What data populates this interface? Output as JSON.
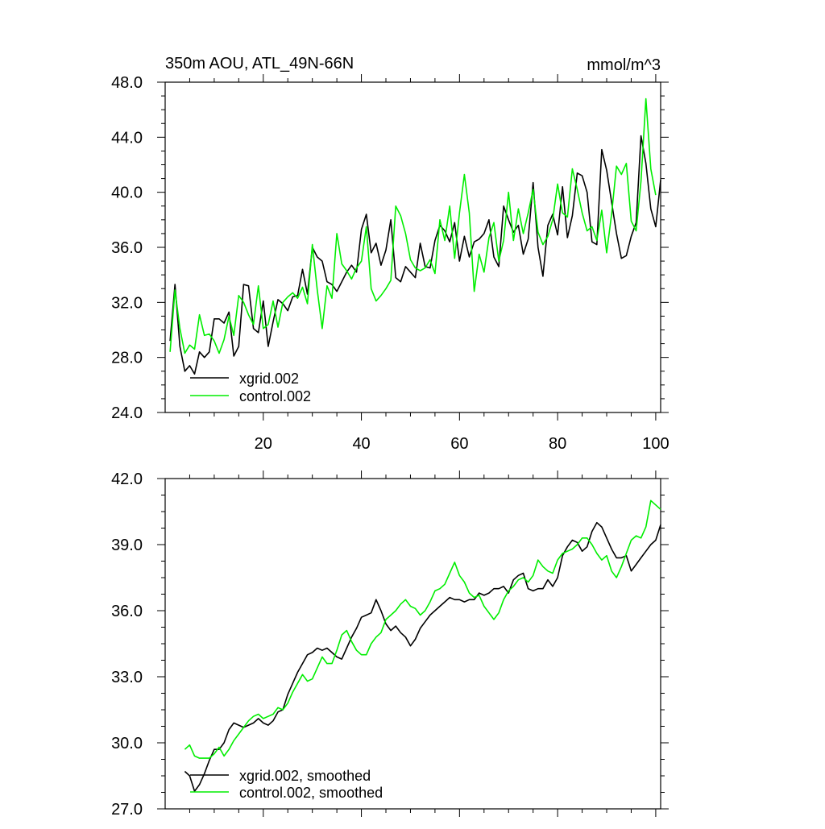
{
  "chart_data": [
    {
      "type": "line",
      "title": "350m AOU, ATL_49N-66N",
      "units": "mmol/m^3",
      "xlabel": "",
      "ylabel": "",
      "xlim": [
        0,
        101
      ],
      "ylim": [
        24.0,
        48.0
      ],
      "x_ticks": [
        20,
        40,
        60,
        80,
        100
      ],
      "x_tick_labels": [
        "20",
        "40",
        "60",
        "80",
        "100"
      ],
      "y_ticks": [
        24.0,
        28.0,
        32.0,
        36.0,
        40.0,
        44.0,
        48.0
      ],
      "y_tick_labels": [
        "24.0",
        "28.0",
        "32.0",
        "36.0",
        "40.0",
        "44.0",
        "48.0"
      ],
      "legend_position": "bottom-left",
      "series": [
        {
          "name": "xgrid.002",
          "color": "#000000",
          "x_start": 1,
          "values": [
            29.2,
            33.3,
            28.8,
            27.0,
            27.4,
            26.8,
            28.4,
            28.0,
            28.4,
            30.8,
            30.8,
            30.5,
            31.3,
            28.1,
            28.8,
            33.3,
            33.2,
            30.1,
            29.8,
            32.1,
            28.8,
            30.6,
            32.2,
            31.9,
            31.4,
            32.4,
            32.5,
            34.4,
            32.6,
            36.0,
            35.3,
            35.0,
            33.5,
            33.3,
            32.8,
            33.5,
            34.2,
            34.7,
            34.2,
            37.3,
            38.4,
            35.6,
            36.3,
            34.7,
            35.8,
            38.0,
            33.8,
            33.5,
            34.6,
            34.2,
            33.8,
            36.3,
            34.6,
            34.5,
            36.5,
            37.6,
            37.2,
            36.4,
            37.8,
            35.0,
            36.8,
            35.3,
            36.4,
            36.6,
            37.0,
            38.0,
            35.3,
            34.6,
            39.0,
            38.0,
            37.1,
            37.6,
            35.5,
            36.6,
            40.7,
            36.0,
            33.9,
            37.6,
            38.4,
            36.9,
            40.4,
            36.7,
            38.3,
            41.4,
            41.2,
            40.0,
            36.4,
            36.2,
            43.1,
            41.6,
            39.3,
            37.0,
            35.2,
            35.4,
            36.8,
            37.8,
            44.1,
            42.1,
            38.8,
            37.5,
            40.9
          ]
        },
        {
          "name": "control.002",
          "color": "#00ee00",
          "x_start": 1,
          "values": [
            28.4,
            32.9,
            30.1,
            28.3,
            28.9,
            28.6,
            31.1,
            29.6,
            29.7,
            29.2,
            28.3,
            29.3,
            31.0,
            29.6,
            32.5,
            32.0,
            31.1,
            30.4,
            33.2,
            30.1,
            30.4,
            32.1,
            30.2,
            32.0,
            32.4,
            32.7,
            32.3,
            33.1,
            31.9,
            36.2,
            32.9,
            30.1,
            33.2,
            32.3,
            37.0,
            34.8,
            34.3,
            33.7,
            34.5,
            35.0,
            37.5,
            33.0,
            32.1,
            32.5,
            33.0,
            33.6,
            39.0,
            38.3,
            37.0,
            35.1,
            34.5,
            34.3,
            34.5,
            35.1,
            34.1,
            38.0,
            36.5,
            39.0,
            35.2,
            38.5,
            41.3,
            38.5,
            32.8,
            35.5,
            34.2,
            36.7,
            37.8,
            35.0,
            36.5,
            40.0,
            36.5,
            38.8,
            37.0,
            38.5,
            40.2,
            37.1,
            36.2,
            36.8,
            38.0,
            40.6,
            38.5,
            38.2,
            41.7,
            40.2,
            38.5,
            37.2,
            37.5,
            36.5,
            38.7,
            35.6,
            38.4,
            41.9,
            41.3,
            42.1,
            37.9,
            37.2,
            40.8,
            46.8,
            41.7,
            39.8,
            null
          ]
        }
      ],
      "legend": [
        "xgrid.002",
        "control.002"
      ]
    },
    {
      "type": "line",
      "title": "",
      "xlabel": "",
      "ylabel": "",
      "xlim": [
        0,
        101
      ],
      "ylim": [
        27.0,
        42.0
      ],
      "x_ticks": [
        20,
        40,
        60,
        80,
        100
      ],
      "x_tick_labels": [],
      "y_ticks": [
        27.0,
        30.0,
        33.0,
        36.0,
        39.0,
        42.0
      ],
      "y_tick_labels": [
        "27.0",
        "30.0",
        "33.0",
        "36.0",
        "39.0",
        "42.0"
      ],
      "legend_position": "bottom-left",
      "series": [
        {
          "name": "xgrid.002, smoothed",
          "color": "#000000",
          "x_start": 4,
          "values": [
            28.7,
            28.5,
            27.8,
            28.1,
            28.6,
            29.2,
            29.7,
            29.7,
            30.0,
            30.6,
            30.9,
            30.8,
            30.7,
            30.8,
            30.9,
            31.1,
            30.9,
            30.8,
            31.0,
            31.4,
            31.5,
            32.2,
            32.7,
            33.2,
            33.6,
            34.0,
            34.1,
            34.3,
            34.2,
            34.3,
            34.1,
            33.9,
            33.8,
            34.3,
            34.8,
            35.2,
            35.7,
            35.8,
            35.9,
            36.5,
            36.0,
            35.4,
            35.1,
            35.3,
            35.0,
            34.8,
            34.4,
            34.7,
            35.2,
            35.5,
            35.8,
            36.0,
            36.2,
            36.4,
            36.6,
            36.5,
            36.5,
            36.4,
            36.5,
            36.5,
            36.8,
            36.7,
            36.8,
            37.0,
            37.0,
            37.1,
            36.8,
            37.4,
            37.6,
            37.7,
            37.0,
            36.9,
            37.0,
            37.0,
            37.4,
            37.1,
            37.5,
            38.5,
            38.9,
            39.2,
            39.1,
            38.7,
            38.9,
            39.6,
            40.0,
            39.8,
            39.3,
            38.8,
            38.4,
            38.4,
            38.5,
            37.8,
            38.1,
            38.4,
            38.7,
            39.0,
            39.2,
            39.9
          ]
        },
        {
          "name": "control.002, smoothed",
          "color": "#00ee00",
          "x_start": 4,
          "values": [
            29.7,
            29.9,
            29.4,
            29.3,
            29.3,
            29.3,
            29.5,
            29.8,
            29.4,
            29.7,
            30.1,
            30.4,
            30.7,
            31.0,
            31.2,
            31.3,
            31.1,
            31.2,
            31.3,
            31.6,
            31.5,
            31.8,
            32.3,
            32.7,
            33.1,
            32.8,
            32.9,
            33.4,
            33.9,
            33.6,
            33.6,
            34.2,
            34.9,
            35.1,
            34.6,
            34.2,
            34.0,
            34.0,
            34.5,
            34.8,
            35.0,
            35.6,
            35.8,
            36.0,
            36.3,
            36.5,
            36.2,
            36.1,
            35.8,
            36.0,
            36.4,
            36.9,
            37.0,
            37.2,
            37.7,
            38.2,
            37.6,
            37.3,
            36.8,
            36.6,
            36.7,
            36.2,
            35.9,
            35.6,
            35.9,
            36.5,
            36.9,
            37.1,
            37.4,
            37.5,
            37.3,
            37.6,
            38.3,
            38.0,
            37.8,
            37.7,
            38.3,
            38.6,
            38.7,
            38.8,
            39.0,
            39.3,
            39.3,
            39.0,
            38.6,
            38.3,
            38.5,
            37.8,
            37.5,
            38.0,
            38.6,
            39.2,
            39.4,
            39.3,
            39.8,
            41.0,
            40.8,
            40.6
          ]
        }
      ],
      "legend": [
        "xgrid.002, smoothed",
        "control.002, smoothed"
      ]
    }
  ]
}
